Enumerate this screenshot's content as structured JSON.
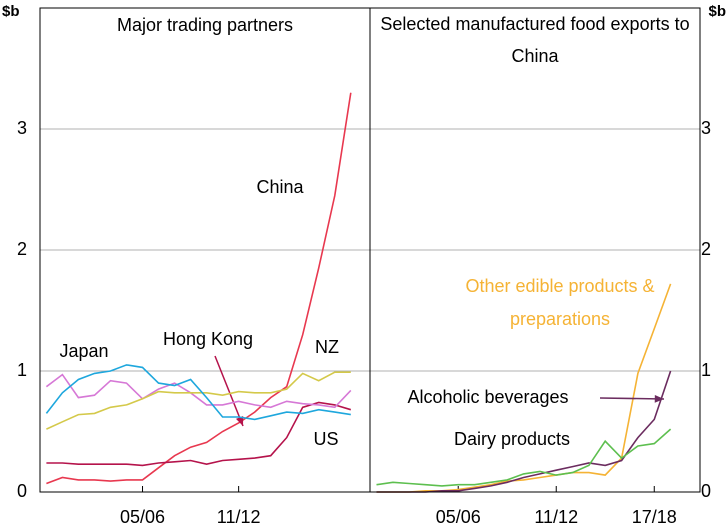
{
  "chart_data": [
    {
      "type": "line",
      "title": "Major trading partners",
      "ylabel": "$b",
      "x": [
        2000,
        2001,
        2002,
        2003,
        2004,
        2005,
        2006,
        2007,
        2008,
        2009,
        2010,
        2011,
        2012,
        2013,
        2014,
        2015,
        2016,
        2017,
        2018,
        2019
      ],
      "xlim": [
        1999.6,
        2020.2
      ],
      "xticks": [
        {
          "value": 2006,
          "label": "05/06"
        },
        {
          "value": 2012,
          "label": "11/12"
        }
      ],
      "ylim": [
        0,
        4
      ],
      "yticks": [
        0,
        1,
        2,
        3
      ],
      "grid": true,
      "series": [
        {
          "name": "China",
          "color": "#e8384f",
          "values": [
            0.07,
            0.12,
            0.1,
            0.1,
            0.09,
            0.1,
            0.1,
            0.2,
            0.3,
            0.37,
            0.41,
            0.5,
            0.57,
            0.66,
            0.78,
            0.87,
            1.3,
            1.85,
            2.45,
            3.3
          ]
        },
        {
          "name": "Hong Kong",
          "color": "#b5134b",
          "values": [
            0.24,
            0.24,
            0.23,
            0.23,
            0.23,
            0.23,
            0.22,
            0.24,
            0.25,
            0.26,
            0.23,
            0.26,
            0.27,
            0.28,
            0.3,
            0.45,
            0.7,
            0.74,
            0.72,
            0.68
          ]
        },
        {
          "name": "Japan",
          "color": "#d678d6",
          "values": [
            0.87,
            0.97,
            0.78,
            0.8,
            0.92,
            0.9,
            0.77,
            0.85,
            0.9,
            0.82,
            0.72,
            0.72,
            0.75,
            0.72,
            0.7,
            0.75,
            0.73,
            0.72,
            0.7,
            0.84
          ]
        },
        {
          "name": "NZ",
          "color": "#d4c94a",
          "values": [
            0.52,
            0.58,
            0.64,
            0.65,
            0.7,
            0.72,
            0.77,
            0.83,
            0.82,
            0.82,
            0.82,
            0.8,
            0.83,
            0.82,
            0.82,
            0.85,
            0.98,
            0.92,
            0.99,
            0.99
          ]
        },
        {
          "name": "US",
          "color": "#1ea7dd",
          "values": [
            0.65,
            0.82,
            0.93,
            0.98,
            1.0,
            1.05,
            1.03,
            0.9,
            0.88,
            0.93,
            0.78,
            0.62,
            0.62,
            0.6,
            0.63,
            0.66,
            0.65,
            0.68,
            0.66,
            0.64
          ]
        }
      ]
    },
    {
      "type": "line",
      "title": "Selected manufactured food exports to China",
      "ylabel": "$b",
      "x": [
        2001,
        2002,
        2003,
        2004,
        2005,
        2006,
        2007,
        2008,
        2009,
        2010,
        2011,
        2012,
        2013,
        2014,
        2015,
        2016,
        2017,
        2018,
        2019
      ],
      "xlim": [
        2000.6,
        2020.8
      ],
      "xticks": [
        {
          "value": 2006,
          "label": "05/06"
        },
        {
          "value": 2012,
          "label": "11/12"
        },
        {
          "value": 2018,
          "label": "17/18"
        }
      ],
      "ylim": [
        0,
        4
      ],
      "yticks": [
        0,
        1,
        2,
        3
      ],
      "grid": true,
      "series": [
        {
          "name": "Other edible products & preparations",
          "color": "#f5b335",
          "values": [
            0.0,
            0.0,
            0.0,
            0.01,
            0.01,
            0.02,
            0.04,
            0.06,
            0.09,
            0.1,
            0.12,
            0.14,
            0.16,
            0.16,
            0.14,
            0.28,
            0.98,
            1.35,
            1.72
          ]
        },
        {
          "name": "Alcoholic beverages",
          "color": "#6b2c5f",
          "values": [
            0.0,
            0.0,
            0.0,
            0.0,
            0.01,
            0.01,
            0.03,
            0.05,
            0.08,
            0.12,
            0.15,
            0.18,
            0.21,
            0.24,
            0.22,
            0.26,
            0.45,
            0.6,
            1.0
          ]
        },
        {
          "name": "Dairy products",
          "color": "#5dbf4f",
          "values": [
            0.06,
            0.08,
            0.07,
            0.06,
            0.05,
            0.06,
            0.06,
            0.08,
            0.1,
            0.15,
            0.17,
            0.14,
            0.16,
            0.22,
            0.42,
            0.28,
            0.38,
            0.4,
            0.52
          ]
        }
      ]
    }
  ]
}
